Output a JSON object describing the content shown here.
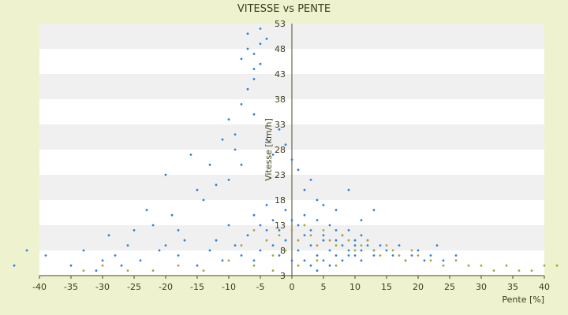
{
  "chart_data": {
    "type": "scatter",
    "title": "VITESSE vs PENTE",
    "xlabel": "Pente [%]",
    "ylabel": "Vitesse [km/h]",
    "xlim": [
      -40,
      40
    ],
    "ylim": [
      3,
      53
    ],
    "x_ticks": [
      -40,
      -35,
      -30,
      -25,
      -20,
      -15,
      -10,
      -5,
      0,
      5,
      10,
      15,
      20,
      25,
      30,
      35,
      40
    ],
    "y_ticks": [
      3,
      8,
      13,
      18,
      23,
      28,
      33,
      38,
      43,
      48,
      53
    ],
    "grid": "horizontal alternating bands",
    "legend": "none",
    "colors": {
      "background": "#eef2cf",
      "plot_band_light": "#ffffff",
      "plot_band_dark": "#f0f0f0",
      "axis": "#4a4a2a",
      "points_blue": "#2f7fd6",
      "points_olive": "#a7a23a"
    },
    "series": [
      {
        "color": "blue",
        "points": [
          [
            -44,
            5
          ],
          [
            -42,
            8
          ],
          [
            -39,
            7
          ],
          [
            -35,
            5
          ],
          [
            -33,
            8
          ],
          [
            -31,
            4
          ],
          [
            -30,
            6
          ],
          [
            -29,
            11
          ],
          [
            -28,
            7
          ],
          [
            -27,
            5
          ],
          [
            -26,
            9
          ],
          [
            -25,
            12
          ],
          [
            -24,
            6
          ],
          [
            -23,
            16
          ],
          [
            -22,
            13
          ],
          [
            -21,
            8
          ],
          [
            -20,
            23
          ],
          [
            -19,
            15
          ],
          [
            -18,
            12
          ],
          [
            -17,
            10
          ],
          [
            -16,
            27
          ],
          [
            -15,
            20
          ],
          [
            -14,
            18
          ],
          [
            -13,
            25
          ],
          [
            -12,
            21
          ],
          [
            -11,
            30
          ],
          [
            -10,
            34
          ],
          [
            -9,
            31
          ],
          [
            -8,
            37
          ],
          [
            -7,
            40
          ],
          [
            -6,
            44
          ],
          [
            -6,
            47
          ],
          [
            -5,
            52
          ],
          [
            -5,
            49
          ],
          [
            -7,
            51
          ],
          [
            -6,
            42
          ],
          [
            -5,
            45
          ],
          [
            -4,
            50
          ],
          [
            -8,
            46
          ],
          [
            -7,
            48
          ],
          [
            -9,
            28
          ],
          [
            -8,
            25
          ],
          [
            -10,
            22
          ],
          [
            -6,
            35
          ],
          [
            -4,
            30
          ],
          [
            -3,
            27
          ],
          [
            -2,
            32
          ],
          [
            -1,
            29
          ],
          [
            0,
            26
          ],
          [
            1,
            24
          ],
          [
            2,
            20
          ],
          [
            3,
            22
          ],
          [
            4,
            18
          ],
          [
            -12,
            10
          ],
          [
            -10,
            13
          ],
          [
            -9,
            9
          ],
          [
            -8,
            7
          ],
          [
            -7,
            11
          ],
          [
            -6,
            6
          ],
          [
            -5,
            8
          ],
          [
            -4,
            12
          ],
          [
            -3,
            9
          ],
          [
            -2,
            7
          ],
          [
            -1,
            10
          ],
          [
            0,
            6
          ],
          [
            1,
            8
          ],
          [
            2,
            11
          ],
          [
            3,
            9
          ],
          [
            4,
            7
          ],
          [
            5,
            10
          ],
          [
            6,
            8
          ],
          [
            7,
            12
          ],
          [
            8,
            9
          ],
          [
            9,
            7
          ],
          [
            10,
            10
          ],
          [
            11,
            8
          ],
          [
            12,
            9
          ],
          [
            13,
            7
          ],
          [
            14,
            9
          ],
          [
            15,
            8
          ],
          [
            16,
            7
          ],
          [
            17,
            9
          ],
          [
            18,
            6
          ],
          [
            19,
            7
          ],
          [
            20,
            8
          ],
          [
            21,
            6
          ],
          [
            22,
            7
          ],
          [
            23,
            9
          ],
          [
            24,
            6
          ],
          [
            26,
            7
          ],
          [
            4,
            14
          ],
          [
            5,
            11
          ],
          [
            6,
            13
          ],
          [
            7,
            10
          ],
          [
            8,
            11
          ],
          [
            9,
            12
          ],
          [
            10,
            9
          ],
          [
            11,
            11
          ],
          [
            12,
            10
          ],
          [
            13,
            8
          ],
          [
            2,
            6
          ],
          [
            3,
            5
          ],
          [
            4,
            4
          ],
          [
            5,
            6
          ],
          [
            6,
            5
          ],
          [
            7,
            7
          ],
          [
            8,
            6
          ],
          [
            9,
            8
          ],
          [
            10,
            7
          ],
          [
            11,
            6
          ],
          [
            1,
            13
          ],
          [
            2,
            15
          ],
          [
            3,
            12
          ],
          [
            0,
            14
          ],
          [
            -1,
            16
          ],
          [
            -2,
            12
          ],
          [
            -3,
            14
          ],
          [
            -4,
            17
          ],
          [
            -5,
            13
          ],
          [
            -6,
            15
          ],
          [
            -15,
            5
          ],
          [
            -18,
            7
          ],
          [
            -20,
            9
          ],
          [
            -13,
            8
          ],
          [
            -11,
            6
          ],
          [
            5,
            17
          ],
          [
            7,
            16
          ],
          [
            9,
            20
          ],
          [
            11,
            14
          ],
          [
            13,
            16
          ]
        ]
      },
      {
        "color": "olive",
        "points": [
          [
            -33,
            4
          ],
          [
            -30,
            5
          ],
          [
            -26,
            4
          ],
          [
            -22,
            4
          ],
          [
            -18,
            5
          ],
          [
            -14,
            4
          ],
          [
            -10,
            6
          ],
          [
            -8,
            9
          ],
          [
            -6,
            12
          ],
          [
            -4,
            10
          ],
          [
            -3,
            7
          ],
          [
            -2,
            11
          ],
          [
            -1,
            8
          ],
          [
            0,
            12
          ],
          [
            1,
            10
          ],
          [
            2,
            13
          ],
          [
            3,
            11
          ],
          [
            4,
            9
          ],
          [
            5,
            12
          ],
          [
            6,
            10
          ],
          [
            7,
            9
          ],
          [
            8,
            11
          ],
          [
            9,
            10
          ],
          [
            10,
            8
          ],
          [
            11,
            9
          ],
          [
            12,
            10
          ],
          [
            13,
            8
          ],
          [
            14,
            7
          ],
          [
            15,
            9
          ],
          [
            16,
            8
          ],
          [
            17,
            7
          ],
          [
            18,
            6
          ],
          [
            19,
            8
          ],
          [
            20,
            7
          ],
          [
            22,
            6
          ],
          [
            24,
            5
          ],
          [
            26,
            6
          ],
          [
            28,
            5
          ],
          [
            30,
            5
          ],
          [
            32,
            4
          ],
          [
            34,
            5
          ],
          [
            36,
            4
          ],
          [
            38,
            4
          ],
          [
            40,
            5
          ],
          [
            42,
            5
          ],
          [
            -6,
            5
          ],
          [
            -3,
            4
          ],
          [
            1,
            5
          ],
          [
            4,
            6
          ],
          [
            7,
            5
          ]
        ]
      }
    ]
  }
}
